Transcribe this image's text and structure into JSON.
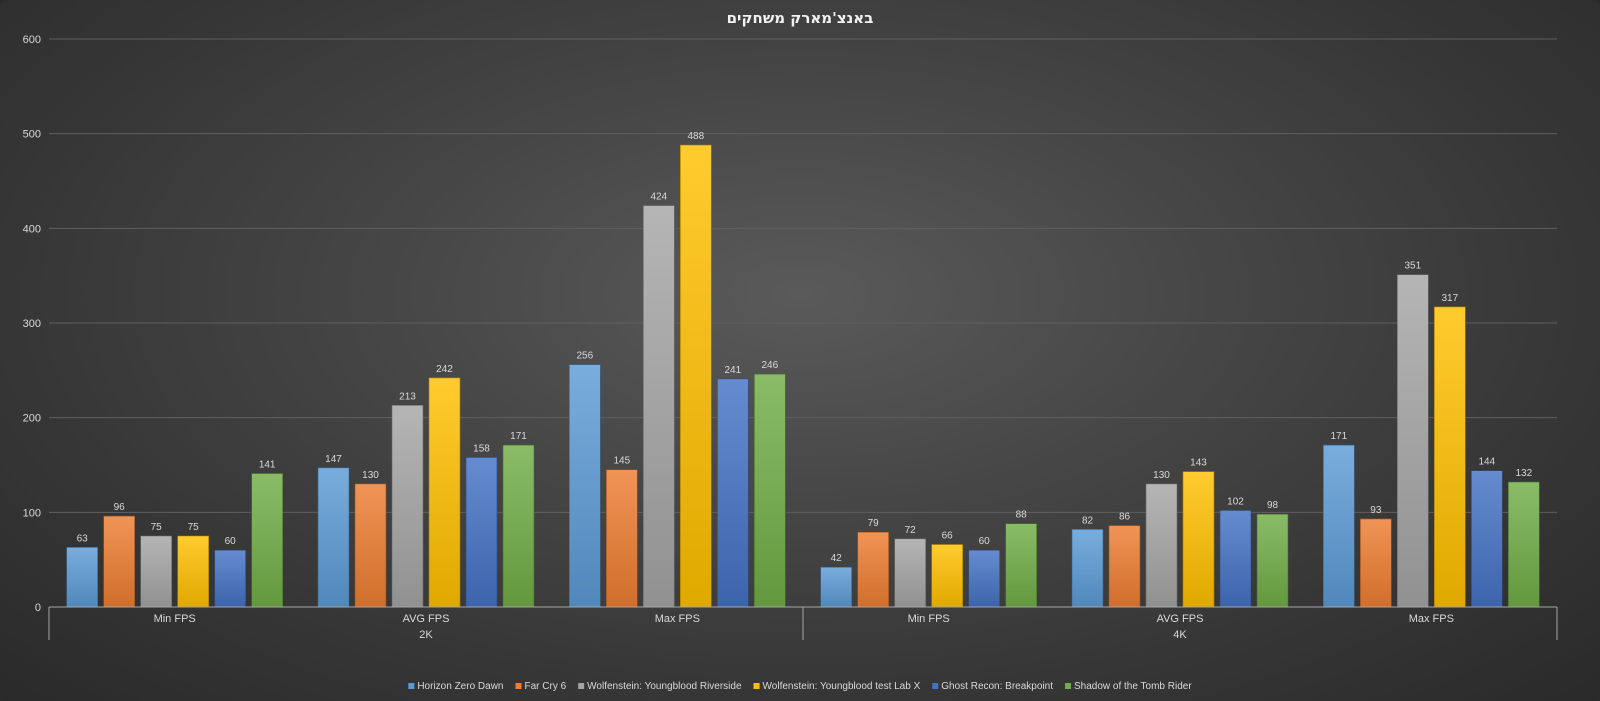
{
  "chart_data": {
    "type": "bar",
    "title": "באנצ'מארק משחקים",
    "ylim": [
      0,
      600
    ],
    "yticks": [
      0,
      100,
      200,
      300,
      400,
      500,
      600
    ],
    "grid": true,
    "legend_position": "bottom",
    "groups": [
      {
        "label": "2K",
        "categories": [
          "Min FPS",
          "AVG FPS",
          "Max FPS"
        ]
      },
      {
        "label": "4K",
        "categories": [
          "Min FPS",
          "AVG FPS",
          "Max FPS"
        ]
      }
    ],
    "series": [
      {
        "name": "Horizon Zero Dawn",
        "color": "#5b9bd5",
        "values": [
          63,
          147,
          256,
          42,
          82,
          171
        ]
      },
      {
        "name": "Far Cry 6",
        "color": "#ed7d31",
        "values": [
          96,
          130,
          145,
          79,
          86,
          93
        ]
      },
      {
        "name": "Wolfenstein: Youngblood Riverside",
        "color": "#a5a5a5",
        "values": [
          75,
          213,
          424,
          72,
          130,
          351
        ]
      },
      {
        "name": "Wolfenstein: Youngblood test Lab X",
        "color": "#ffc000",
        "values": [
          75,
          242,
          488,
          66,
          143,
          317
        ]
      },
      {
        "name": "Ghost Recon: Breakpoint",
        "color": "#4472c4",
        "values": [
          60,
          158,
          241,
          60,
          102,
          144
        ]
      },
      {
        "name": "Shadow of the Tomb Rider",
        "color": "#70ad47",
        "values": [
          141,
          171,
          246,
          88,
          98,
          132
        ]
      }
    ]
  }
}
